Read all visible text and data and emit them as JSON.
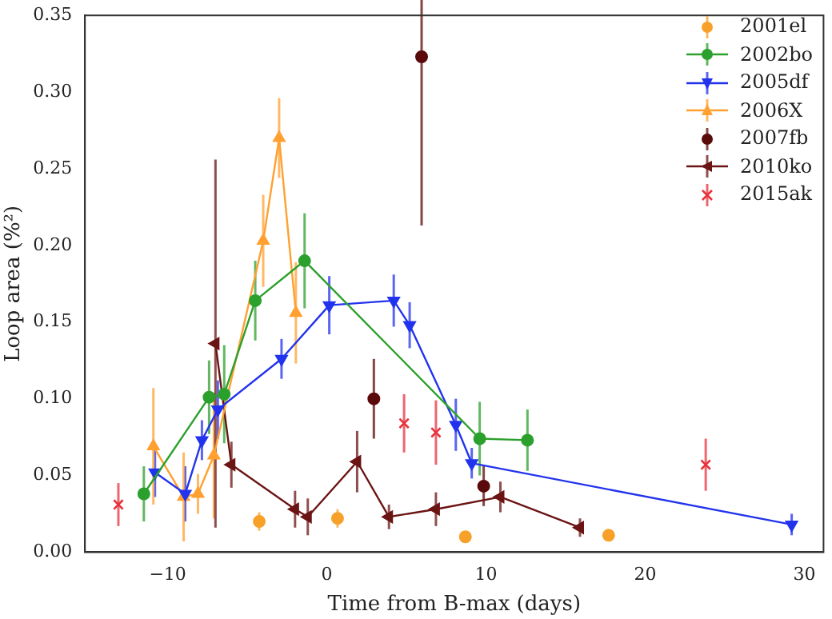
{
  "chart_data": {
    "type": "line",
    "xlabel": "Time from B-max (days)",
    "ylabel": "Loop area (%²)",
    "xlim": [
      -15.2,
      31.2
    ],
    "xticks": [
      {
        "value": -10,
        "label": "−10"
      },
      0,
      10,
      20,
      30
    ],
    "ylim": [
      0,
      0.35
    ],
    "yticks": [
      {
        "value": 0,
        "label": "0.00"
      },
      0.05,
      {
        "value": 0.1,
        "label": "0.10"
      },
      0.15,
      {
        "value": 0.2,
        "label": "0.20"
      },
      0.25,
      {
        "value": 0.3,
        "label": "0.30"
      },
      0.35
    ],
    "legend": "top right",
    "grid": false,
    "series": [
      {
        "name": "2001el",
        "type": "scatter",
        "marker": "circle",
        "color": "#f7a12a",
        "x": [
          -4.25,
          0.67,
          8.7,
          17.7
        ],
        "values": [
          0.02,
          0.022,
          0.01,
          0.011
        ],
        "errors": [
          0.006,
          0.006,
          0.003,
          0.003
        ]
      },
      {
        "name": "2002bo",
        "type": "line",
        "marker": "circle",
        "color": "#2ca02c",
        "x": [
          -11.5,
          -7.4,
          -6.45,
          -4.5,
          -1.4,
          9.6,
          12.6
        ],
        "values": [
          0.038,
          0.101,
          0.103,
          0.164,
          0.19,
          0.074,
          0.073
        ],
        "errors": [
          0.018,
          0.024,
          0.032,
          0.026,
          0.031,
          0.024,
          0.02
        ]
      },
      {
        "name": "2005df",
        "type": "line",
        "marker": "triangle-down",
        "color": "#2233ee",
        "x": [
          -10.8,
          -8.9,
          -7.85,
          -6.85,
          -2.85,
          0.15,
          4.2,
          5.2,
          8.1,
          9.1,
          29.2
        ],
        "values": [
          0.052,
          0.038,
          0.073,
          0.093,
          0.126,
          0.161,
          0.164,
          0.148,
          0.083,
          0.058,
          0.018
        ],
        "errors": [
          0.016,
          0.018,
          0.013,
          0.019,
          0.013,
          0.019,
          0.017,
          0.015,
          0.017,
          0.01,
          0.007
        ]
      },
      {
        "name": "2006X",
        "type": "line",
        "marker": "triangle",
        "color": "#ffa030",
        "x": [
          -10.9,
          -9.0,
          -8.1,
          -7.1,
          -4.0,
          -3.0,
          -1.95
        ],
        "values": [
          0.069,
          0.036,
          0.038,
          0.063,
          0.203,
          0.27,
          0.156
        ],
        "errors": [
          0.038,
          0.029,
          0.013,
          0.041,
          0.03,
          0.026,
          0.033
        ]
      },
      {
        "name": "2007fb",
        "type": "scatter",
        "marker": "circle",
        "color": "#5a0a0a",
        "x": [
          2.95,
          5.95,
          9.85
        ],
        "values": [
          0.1,
          0.323,
          0.043
        ],
        "errors": [
          0.026,
          0.11,
          0.013
        ]
      },
      {
        "name": "2010ko",
        "type": "line",
        "marker": "triangle-left",
        "color": "#6b1414",
        "x": [
          -7.0,
          -6.0,
          -2.0,
          -1.2,
          1.9,
          3.9,
          6.85,
          10.9,
          15.9
        ],
        "values": [
          0.136,
          0.057,
          0.028,
          0.023,
          0.059,
          0.023,
          0.028,
          0.036,
          0.016
        ],
        "errors": [
          0.12,
          0.015,
          0.012,
          0.012,
          0.02,
          0.008,
          0.011,
          0.01,
          0.006
        ]
      },
      {
        "name": "2015ak",
        "type": "scatter",
        "marker": "cross",
        "color": "#e8323c",
        "x": [
          -13.1,
          4.85,
          6.85,
          23.8
        ],
        "values": [
          0.031,
          0.084,
          0.078,
          0.057
        ],
        "errors": [
          0.014,
          0.019,
          0.021,
          0.017
        ]
      }
    ]
  }
}
